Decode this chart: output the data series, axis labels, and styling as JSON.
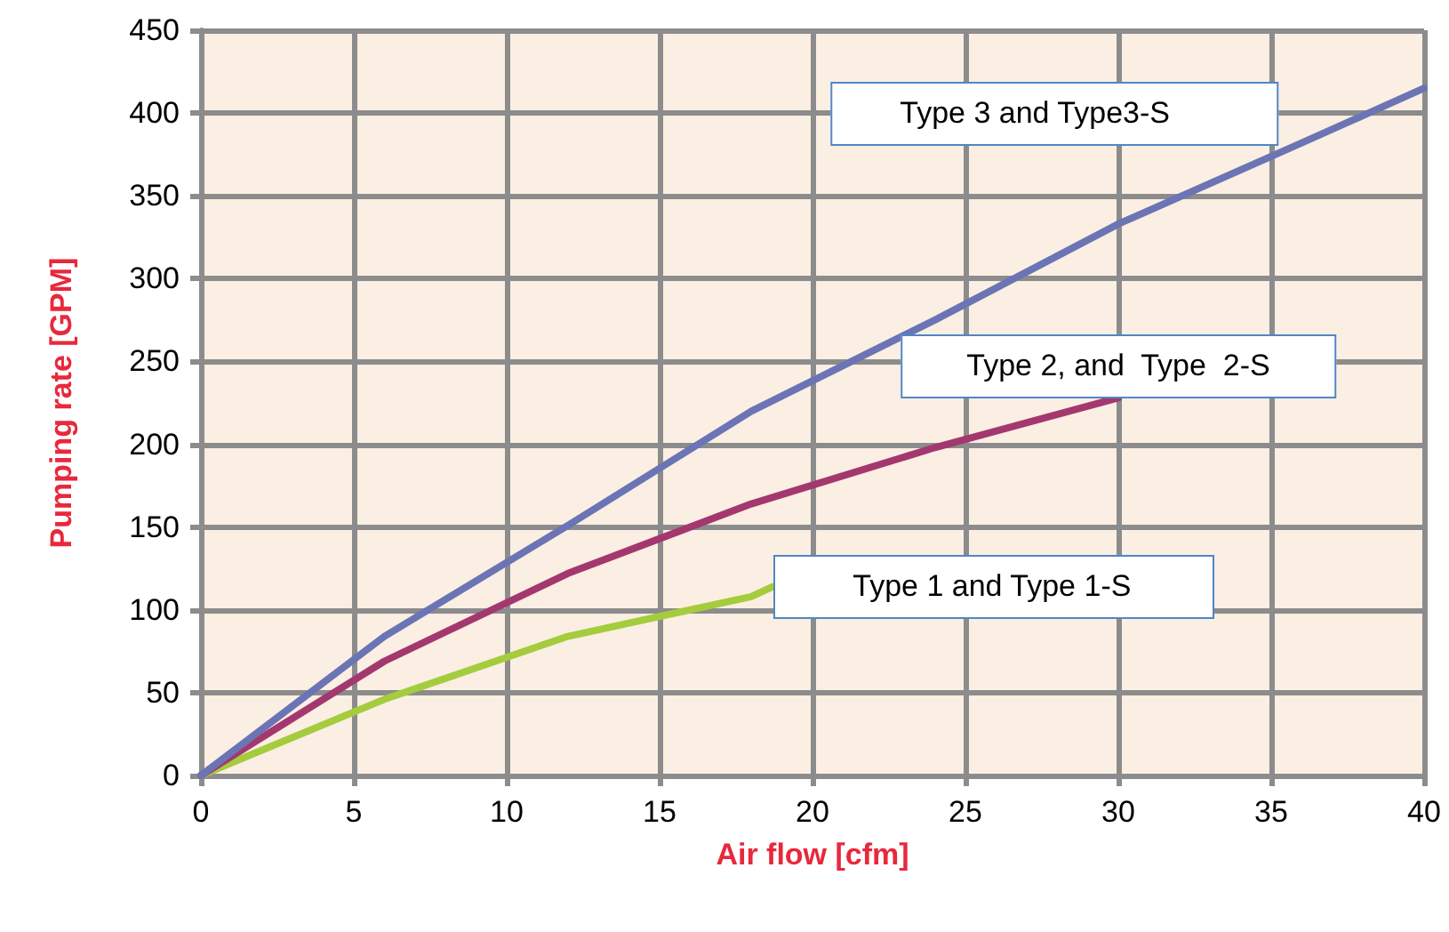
{
  "chart_data": {
    "type": "line",
    "xlabel": "Air flow [cfm]",
    "ylabel": "Pumping rate [GPM]",
    "xlim": [
      0,
      40
    ],
    "xticks": [
      0,
      5,
      10,
      15,
      20,
      25,
      30,
      35,
      40
    ],
    "ylim": [
      0,
      450
    ],
    "yticks": [
      0,
      50,
      100,
      150,
      200,
      250,
      300,
      350,
      400,
      450
    ],
    "grid": true,
    "legend": false,
    "marker": "none",
    "line_style": "solid",
    "series": [
      {
        "name": "Type 1 and Type 1-S",
        "color": "#a4cc3c",
        "x": [
          0,
          6,
          12,
          18,
          18.7
        ],
        "values": [
          0,
          46,
          84,
          108,
          114
        ]
      },
      {
        "name": "Type 2, and  Type  2-S",
        "color": "#a3386f",
        "x": [
          0,
          6,
          12,
          18,
          24,
          30
        ],
        "values": [
          0,
          69,
          122,
          164,
          198,
          228
        ]
      },
      {
        "name": "Type 3 and Type3-S",
        "color": "#6b74b4",
        "x": [
          0,
          6,
          12,
          18,
          24,
          30,
          36,
          40
        ],
        "values": [
          0,
          84,
          151,
          220,
          275,
          333,
          382,
          415
        ]
      }
    ]
  }
}
